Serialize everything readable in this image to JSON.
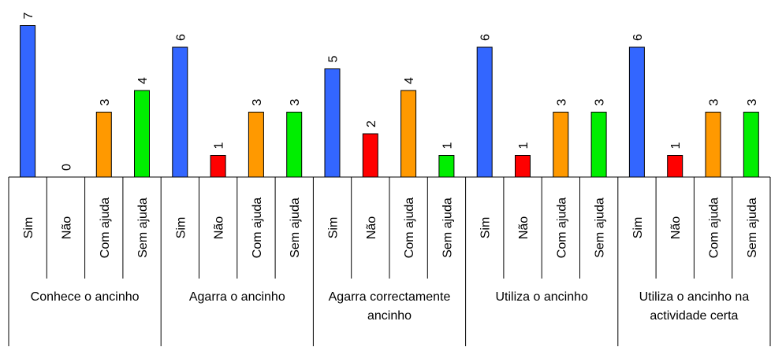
{
  "chart_data": {
    "type": "bar",
    "groups": [
      {
        "label": "Conhece o ancinho",
        "categories": [
          "Sim",
          "Não",
          "Com ajuda",
          "Sem ajuda"
        ],
        "values": [
          7,
          0,
          3,
          4
        ]
      },
      {
        "label": "Agarra o ancinho",
        "categories": [
          "Sim",
          "Não",
          "Com ajuda",
          "Sem ajuda"
        ],
        "values": [
          6,
          1,
          3,
          3
        ]
      },
      {
        "label": "Agarra correctamente ancinho",
        "categories": [
          "Sim",
          "Não",
          "Com ajuda",
          "Sem ajuda"
        ],
        "values": [
          5,
          2,
          4,
          1
        ]
      },
      {
        "label": "Utiliza o ancinho",
        "categories": [
          "Sim",
          "Não",
          "Com ajuda",
          "Sem ajuda"
        ],
        "values": [
          6,
          1,
          3,
          3
        ]
      },
      {
        "label": "Utiliza o ancinho na actividade certa",
        "categories": [
          "Sim",
          "Não",
          "Com ajuda",
          "Sem ajuda"
        ],
        "values": [
          6,
          1,
          3,
          3
        ]
      }
    ],
    "category_colors": {
      "Sim": "#3366ff",
      "Não": "#ff0000",
      "Com ajuda": "#ff9900",
      "Sem ajuda": "#00ee00"
    },
    "ylim": [
      0,
      7
    ],
    "grid": false,
    "legend": "none"
  }
}
